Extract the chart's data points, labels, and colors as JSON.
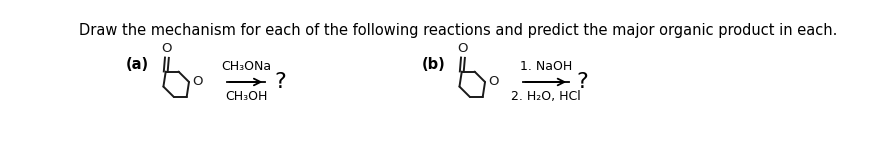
{
  "title": "Draw the mechanism for each of the following reactions and predict the major organic product in each.",
  "title_fontsize": 10.5,
  "title_color": "#000000",
  "bg_color": "#ffffff",
  "label_a": "(a)",
  "label_b": "(b)",
  "label_fontsize": 10.5,
  "label_fontweight": "bold",
  "reagent_a_line1": "CH₃ONa",
  "reagent_a_line2": "CH₃OH",
  "reagent_b_line1": "1. NaOH",
  "reagent_b_line2": "2. H₂O, HCl",
  "question_mark": "?",
  "question_fontsize": 16,
  "reagent_fontsize": 9,
  "arrow_color": "#000000",
  "molecule_color": "#1a1a1a",
  "oxygen_color": "#1a1a1a",
  "o_label_color": "#1a1a1a"
}
